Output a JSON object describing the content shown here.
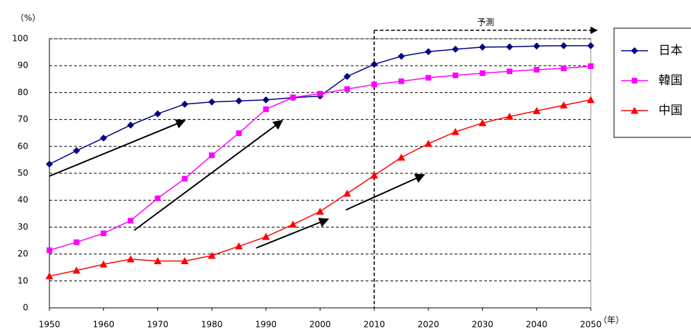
{
  "chart_data": {
    "type": "line",
    "y_unit_label": "（%）",
    "x_unit_label": "（年）",
    "annotation": {
      "text": "予測",
      "x": 2010
    },
    "x": [
      1950,
      1955,
      1960,
      1965,
      1970,
      1975,
      1980,
      1985,
      1990,
      1995,
      2000,
      2005,
      2010,
      2015,
      2020,
      2025,
      2030,
      2035,
      2040,
      2045,
      2050
    ],
    "xlim": [
      1950,
      2050
    ],
    "xticks": [
      1950,
      1960,
      1970,
      1980,
      1990,
      2000,
      2010,
      2020,
      2030,
      2040,
      2050
    ],
    "ylim": [
      0,
      100
    ],
    "yticks": [
      0,
      10,
      20,
      30,
      40,
      50,
      60,
      70,
      80,
      90,
      100
    ],
    "grid": true,
    "series": [
      {
        "name": "日本",
        "color": "#000080",
        "marker": "diamond",
        "values": [
          53.4,
          58.4,
          63.1,
          67.9,
          72.1,
          75.7,
          76.5,
          76.9,
          77.3,
          78.1,
          78.7,
          86.0,
          90.5,
          93.5,
          95.2,
          96.1,
          96.9,
          97.0,
          97.3,
          97.4,
          97.4
        ]
      },
      {
        "name": "韓国",
        "color": "#ff00ff",
        "marker": "square",
        "values": [
          21.4,
          24.4,
          27.7,
          32.4,
          40.7,
          48.0,
          56.7,
          64.9,
          73.8,
          78.2,
          79.6,
          81.3,
          83.0,
          84.2,
          85.5,
          86.4,
          87.2,
          87.9,
          88.5,
          89.0,
          89.8
        ]
      },
      {
        "name": "中国",
        "color": "#ff0000",
        "marker": "triangle",
        "values": [
          11.8,
          13.9,
          16.2,
          18.1,
          17.4,
          17.4,
          19.4,
          22.9,
          26.4,
          31.0,
          35.8,
          42.5,
          49.2,
          55.9,
          61.0,
          65.4,
          68.7,
          71.1,
          73.2,
          75.3,
          77.3
        ]
      }
    ]
  }
}
